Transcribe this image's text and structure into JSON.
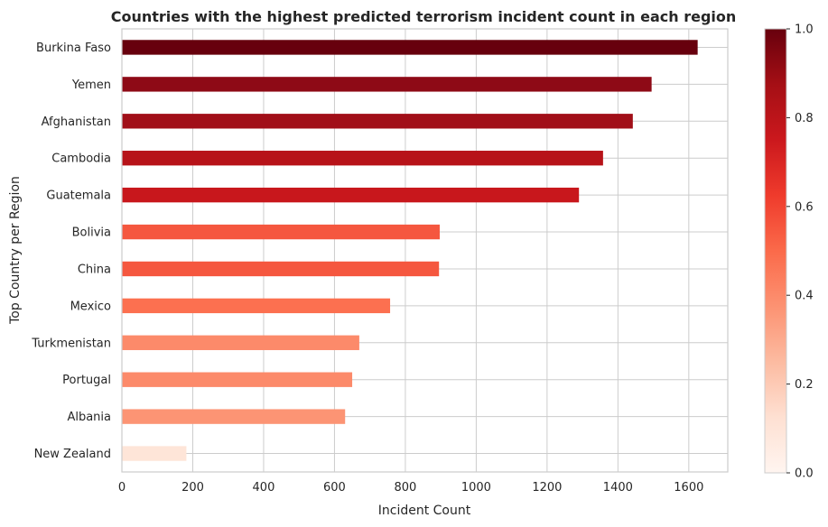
{
  "chart_data": {
    "type": "bar",
    "orientation": "horizontal",
    "title": "Countries with the highest predicted terrorism incident count in each region",
    "xlabel": "Incident Count",
    "ylabel": "Top Country per Region",
    "categories": [
      "Burkina Faso",
      "Yemen",
      "Afghanistan",
      "Cambodia",
      "Guatemala",
      "Bolivia",
      "China",
      "Mexico",
      "Turkmenistan",
      "Portugal",
      "Albania",
      "New Zealand"
    ],
    "values": [
      1625,
      1495,
      1442,
      1358,
      1290,
      897,
      895,
      757,
      670,
      650,
      630,
      182
    ],
    "bar_colors": [
      "#67000d",
      "#8e0a16",
      "#a10f18",
      "#b71319",
      "#c8171c",
      "#f5573f",
      "#f5573f",
      "#fc7050",
      "#fc8a6a",
      "#fc8a6a",
      "#fc9474",
      "#fee5d8"
    ],
    "xlim": [
      0,
      1710
    ],
    "xticks": [
      0,
      200,
      400,
      600,
      800,
      1000,
      1200,
      1400,
      1600
    ],
    "grid": true,
    "colorbar": {
      "range": [
        0,
        1
      ],
      "ticks": [
        "0.0",
        "0.2",
        "0.4",
        "0.6",
        "0.8",
        "1.0"
      ],
      "colormap": "Reds"
    }
  }
}
